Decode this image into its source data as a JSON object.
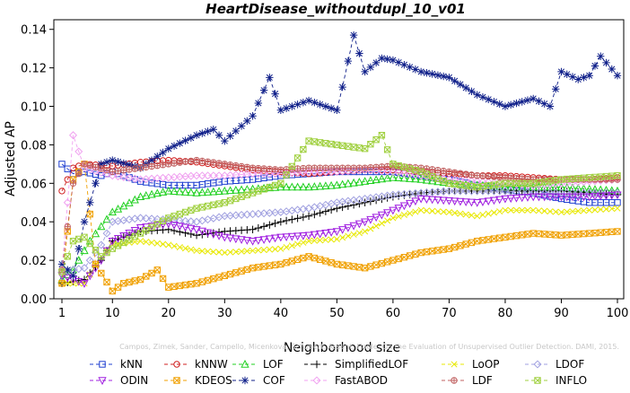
{
  "chart_data": {
    "type": "line",
    "title": "HeartDisease_withoutdupl_10_v01",
    "xlabel": "Neighborhood size",
    "ylabel": "Adjusted AP",
    "xlim": [
      1,
      100
    ],
    "ylim": [
      0,
      0.145
    ],
    "x_ticks": [
      1,
      10,
      20,
      30,
      40,
      50,
      60,
      70,
      80,
      90,
      100
    ],
    "y_ticks": [
      0.0,
      0.02,
      0.04,
      0.06,
      0.08,
      0.1,
      0.12,
      0.14
    ],
    "grid": false,
    "legend_position": "bottom",
    "watermark": "Campos, Zimek, Sander, Campello, Micenková, Schubert, Assent, Houle: On the Evaluation of Unsupervised Outlier Detection. DAMI, 2015.",
    "series": [
      {
        "name": "kNN",
        "color": "#1f3fd0",
        "marker": "square",
        "points": [
          [
            1,
            0.07
          ],
          [
            3,
            0.065
          ],
          [
            5,
            0.066
          ],
          [
            8,
            0.064
          ],
          [
            10,
            0.066
          ],
          [
            15,
            0.061
          ],
          [
            20,
            0.059
          ],
          [
            25,
            0.059
          ],
          [
            30,
            0.061
          ],
          [
            35,
            0.062
          ],
          [
            40,
            0.064
          ],
          [
            45,
            0.065
          ],
          [
            50,
            0.066
          ],
          [
            55,
            0.066
          ],
          [
            60,
            0.066
          ],
          [
            65,
            0.064
          ],
          [
            70,
            0.062
          ],
          [
            75,
            0.059
          ],
          [
            80,
            0.057
          ],
          [
            85,
            0.055
          ],
          [
            90,
            0.052
          ],
          [
            95,
            0.05
          ],
          [
            100,
            0.05
          ]
        ]
      },
      {
        "name": "kNNW",
        "color": "#d02020",
        "marker": "circle",
        "points": [
          [
            1,
            0.056
          ],
          [
            3,
            0.068
          ],
          [
            5,
            0.07
          ],
          [
            10,
            0.069
          ],
          [
            15,
            0.071
          ],
          [
            20,
            0.072
          ],
          [
            25,
            0.071
          ],
          [
            30,
            0.069
          ],
          [
            35,
            0.067
          ],
          [
            40,
            0.066
          ],
          [
            45,
            0.065
          ],
          [
            50,
            0.066
          ],
          [
            55,
            0.067
          ],
          [
            60,
            0.067
          ],
          [
            65,
            0.066
          ],
          [
            70,
            0.065
          ],
          [
            75,
            0.064
          ],
          [
            80,
            0.064
          ],
          [
            85,
            0.063
          ],
          [
            90,
            0.062
          ],
          [
            95,
            0.062
          ],
          [
            100,
            0.063
          ]
        ]
      },
      {
        "name": "LOF",
        "color": "#20d020",
        "marker": "triangle",
        "points": [
          [
            1,
            0.01
          ],
          [
            3,
            0.015
          ],
          [
            6,
            0.03
          ],
          [
            10,
            0.045
          ],
          [
            15,
            0.053
          ],
          [
            20,
            0.056
          ],
          [
            25,
            0.055
          ],
          [
            30,
            0.056
          ],
          [
            35,
            0.057
          ],
          [
            40,
            0.058
          ],
          [
            45,
            0.058
          ],
          [
            50,
            0.059
          ],
          [
            55,
            0.061
          ],
          [
            60,
            0.063
          ],
          [
            65,
            0.062
          ],
          [
            70,
            0.06
          ],
          [
            75,
            0.059
          ],
          [
            80,
            0.058
          ],
          [
            85,
            0.058
          ],
          [
            90,
            0.058
          ],
          [
            95,
            0.057
          ],
          [
            100,
            0.056
          ]
        ]
      },
      {
        "name": "SimplifiedLOF",
        "color": "#000000",
        "marker": "plus",
        "points": [
          [
            1,
            0.008
          ],
          [
            5,
            0.01
          ],
          [
            8,
            0.02
          ],
          [
            10,
            0.03
          ],
          [
            15,
            0.035
          ],
          [
            20,
            0.036
          ],
          [
            25,
            0.033
          ],
          [
            30,
            0.035
          ],
          [
            35,
            0.036
          ],
          [
            40,
            0.04
          ],
          [
            45,
            0.043
          ],
          [
            50,
            0.047
          ],
          [
            55,
            0.05
          ],
          [
            60,
            0.053
          ],
          [
            65,
            0.055
          ],
          [
            70,
            0.056
          ],
          [
            75,
            0.056
          ],
          [
            80,
            0.056
          ],
          [
            85,
            0.056
          ],
          [
            90,
            0.056
          ],
          [
            95,
            0.055
          ],
          [
            100,
            0.054
          ]
        ]
      },
      {
        "name": "LoOP",
        "color": "#e8e800",
        "marker": "x",
        "points": [
          [
            1,
            0.008
          ],
          [
            5,
            0.008
          ],
          [
            8,
            0.022
          ],
          [
            10,
            0.028
          ],
          [
            15,
            0.03
          ],
          [
            20,
            0.028
          ],
          [
            25,
            0.025
          ],
          [
            30,
            0.024
          ],
          [
            35,
            0.025
          ],
          [
            40,
            0.026
          ],
          [
            45,
            0.03
          ],
          [
            50,
            0.031
          ],
          [
            55,
            0.035
          ],
          [
            60,
            0.042
          ],
          [
            65,
            0.046
          ],
          [
            70,
            0.045
          ],
          [
            75,
            0.043
          ],
          [
            80,
            0.046
          ],
          [
            85,
            0.046
          ],
          [
            90,
            0.045
          ],
          [
            95,
            0.046
          ],
          [
            100,
            0.047
          ]
        ]
      },
      {
        "name": "LDOF",
        "color": "#a0a0e0",
        "marker": "diamond",
        "points": [
          [
            1,
            0.014
          ],
          [
            5,
            0.016
          ],
          [
            8,
            0.028
          ],
          [
            10,
            0.04
          ],
          [
            15,
            0.042
          ],
          [
            20,
            0.041
          ],
          [
            25,
            0.04
          ],
          [
            30,
            0.043
          ],
          [
            35,
            0.044
          ],
          [
            40,
            0.045
          ],
          [
            45,
            0.047
          ],
          [
            50,
            0.05
          ],
          [
            55,
            0.052
          ],
          [
            60,
            0.054
          ],
          [
            65,
            0.055
          ],
          [
            70,
            0.056
          ],
          [
            75,
            0.056
          ],
          [
            80,
            0.056
          ],
          [
            85,
            0.055
          ],
          [
            90,
            0.055
          ],
          [
            95,
            0.055
          ],
          [
            100,
            0.055
          ]
        ]
      },
      {
        "name": "ODIN",
        "color": "#a020e0",
        "marker": "triangle-down",
        "points": [
          [
            1,
            0.012
          ],
          [
            5,
            0.008
          ],
          [
            8,
            0.02
          ],
          [
            10,
            0.03
          ],
          [
            15,
            0.037
          ],
          [
            20,
            0.039
          ],
          [
            25,
            0.036
          ],
          [
            30,
            0.032
          ],
          [
            35,
            0.03
          ],
          [
            40,
            0.032
          ],
          [
            45,
            0.033
          ],
          [
            50,
            0.035
          ],
          [
            55,
            0.04
          ],
          [
            60,
            0.046
          ],
          [
            65,
            0.052
          ],
          [
            70,
            0.051
          ],
          [
            75,
            0.05
          ],
          [
            80,
            0.052
          ],
          [
            85,
            0.053
          ],
          [
            90,
            0.053
          ],
          [
            95,
            0.053
          ],
          [
            100,
            0.054
          ]
        ]
      },
      {
        "name": "KDEOS",
        "color": "#f0a000",
        "marker": "square-x",
        "points": [
          [
            1,
            0.008
          ],
          [
            3,
            0.062
          ],
          [
            5,
            0.07
          ],
          [
            7,
            0.018
          ],
          [
            10,
            0.004
          ],
          [
            12,
            0.008
          ],
          [
            15,
            0.01
          ],
          [
            18,
            0.015
          ],
          [
            20,
            0.006
          ],
          [
            25,
            0.008
          ],
          [
            30,
            0.012
          ],
          [
            35,
            0.016
          ],
          [
            40,
            0.018
          ],
          [
            45,
            0.022
          ],
          [
            50,
            0.018
          ],
          [
            55,
            0.016
          ],
          [
            60,
            0.02
          ],
          [
            65,
            0.024
          ],
          [
            70,
            0.026
          ],
          [
            75,
            0.03
          ],
          [
            80,
            0.032
          ],
          [
            85,
            0.034
          ],
          [
            90,
            0.033
          ],
          [
            95,
            0.034
          ],
          [
            100,
            0.035
          ]
        ]
      },
      {
        "name": "COF",
        "color": "#10208a",
        "marker": "star",
        "points": [
          [
            1,
            0.018
          ],
          [
            3,
            0.012
          ],
          [
            5,
            0.04
          ],
          [
            8,
            0.07
          ],
          [
            10,
            0.072
          ],
          [
            15,
            0.068
          ],
          [
            20,
            0.078
          ],
          [
            25,
            0.085
          ],
          [
            28,
            0.088
          ],
          [
            30,
            0.082
          ],
          [
            35,
            0.095
          ],
          [
            38,
            0.115
          ],
          [
            40,
            0.098
          ],
          [
            42,
            0.1
          ],
          [
            45,
            0.103
          ],
          [
            48,
            0.1
          ],
          [
            50,
            0.098
          ],
          [
            51,
            0.11
          ],
          [
            53,
            0.137
          ],
          [
            55,
            0.118
          ],
          [
            58,
            0.125
          ],
          [
            60,
            0.124
          ],
          [
            65,
            0.118
          ],
          [
            70,
            0.115
          ],
          [
            75,
            0.106
          ],
          [
            80,
            0.1
          ],
          [
            85,
            0.104
          ],
          [
            88,
            0.1
          ],
          [
            90,
            0.118
          ],
          [
            93,
            0.114
          ],
          [
            95,
            0.116
          ],
          [
            97,
            0.126
          ],
          [
            100,
            0.116
          ]
        ]
      },
      {
        "name": "FastABOD",
        "color": "#f0a0f0",
        "marker": "diamond",
        "points": [
          [
            1,
            0.015
          ],
          [
            3,
            0.085
          ],
          [
            5,
            0.068
          ],
          [
            10,
            0.064
          ],
          [
            15,
            0.062
          ],
          [
            20,
            0.063
          ],
          [
            25,
            0.064
          ],
          [
            30,
            0.064
          ],
          [
            35,
            0.065
          ],
          [
            40,
            0.065
          ],
          [
            45,
            0.066
          ],
          [
            50,
            0.066
          ],
          [
            55,
            0.067
          ],
          [
            60,
            0.066
          ],
          [
            65,
            0.064
          ],
          [
            70,
            0.062
          ],
          [
            75,
            0.061
          ],
          [
            80,
            0.06
          ],
          [
            85,
            0.059
          ],
          [
            90,
            0.06
          ],
          [
            95,
            0.061
          ],
          [
            100,
            0.062
          ]
        ]
      },
      {
        "name": "LDF",
        "color": "#c06060",
        "marker": "circle-plus",
        "points": [
          [
            1,
            0.015
          ],
          [
            3,
            0.06
          ],
          [
            5,
            0.07
          ],
          [
            10,
            0.066
          ],
          [
            15,
            0.068
          ],
          [
            20,
            0.07
          ],
          [
            25,
            0.072
          ],
          [
            30,
            0.07
          ],
          [
            35,
            0.068
          ],
          [
            40,
            0.067
          ],
          [
            45,
            0.068
          ],
          [
            50,
            0.068
          ],
          [
            55,
            0.068
          ],
          [
            60,
            0.069
          ],
          [
            65,
            0.068
          ],
          [
            70,
            0.066
          ],
          [
            75,
            0.064
          ],
          [
            80,
            0.063
          ],
          [
            85,
            0.062
          ],
          [
            90,
            0.062
          ],
          [
            95,
            0.062
          ],
          [
            100,
            0.062
          ]
        ]
      },
      {
        "name": "INFLO",
        "color": "#a0d040",
        "marker": "square-x",
        "points": [
          [
            1,
            0.014
          ],
          [
            3,
            0.03
          ],
          [
            5,
            0.032
          ],
          [
            8,
            0.022
          ],
          [
            10,
            0.026
          ],
          [
            15,
            0.034
          ],
          [
            20,
            0.042
          ],
          [
            25,
            0.047
          ],
          [
            30,
            0.05
          ],
          [
            35,
            0.055
          ],
          [
            40,
            0.06
          ],
          [
            45,
            0.082
          ],
          [
            50,
            0.08
          ],
          [
            55,
            0.078
          ],
          [
            58,
            0.085
          ],
          [
            60,
            0.07
          ],
          [
            65,
            0.066
          ],
          [
            70,
            0.06
          ],
          [
            75,
            0.058
          ],
          [
            80,
            0.06
          ],
          [
            85,
            0.06
          ],
          [
            90,
            0.062
          ],
          [
            95,
            0.063
          ],
          [
            100,
            0.064
          ]
        ]
      }
    ]
  }
}
